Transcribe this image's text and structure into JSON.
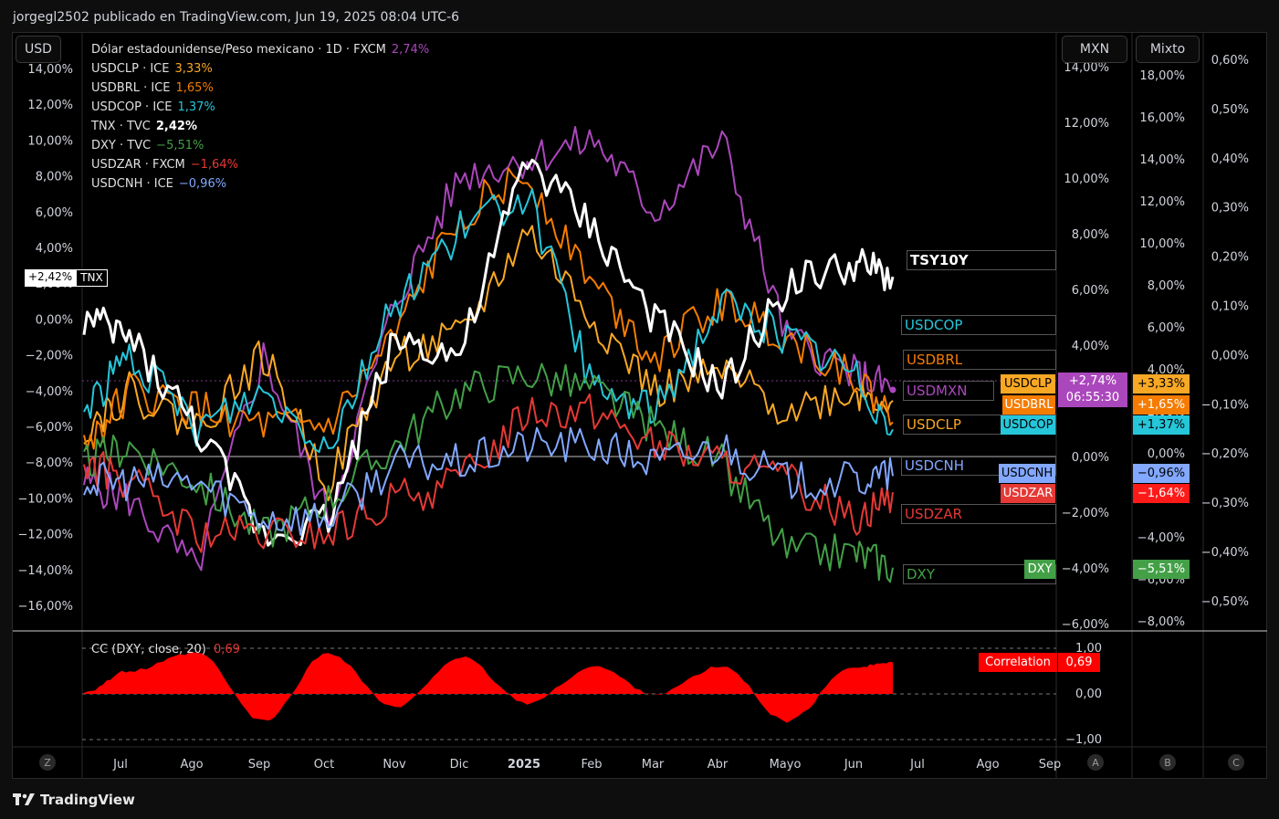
{
  "header": {
    "publisher_line": "jorgegl2502 publicado en TradingView.com, Jun 19, 2025 08:04 UTC-6"
  },
  "footer": {
    "brand": "TradingView"
  },
  "scale_buttons": {
    "left": "USD",
    "right1": "MXN",
    "right2": "Mixto"
  },
  "bottom_circles": [
    "Z",
    "A",
    "B",
    "C"
  ],
  "legend": [
    {
      "name": "Dólar estadounidense/Peso mexicano · 1D · FXCM",
      "value": "2,74%",
      "color": "#ab47bc"
    },
    {
      "name": "USDCLP · ICE",
      "value": "3,33%",
      "color": "#f9a825"
    },
    {
      "name": "USDBRL · ICE",
      "value": "1,65%",
      "color": "#f57c00"
    },
    {
      "name": "USDCOP · ICE",
      "value": "1,37%",
      "color": "#26c6da"
    },
    {
      "name": "TNX · TVC",
      "value": "2,42%",
      "color": "#ffffff"
    },
    {
      "name": "DXY · TVC",
      "value": "−5,51%",
      "color": "#43a047"
    },
    {
      "name": "USDZAR · FXCM",
      "value": "−1,64%",
      "color": "#e53935"
    },
    {
      "name": "USDCNH · ICE",
      "value": "−0,96%",
      "color": "#82a8ff"
    }
  ],
  "colors": {
    "mxn": "#ab47bc",
    "clp": "#f9a825",
    "brl": "#f57c00",
    "cop": "#26c6da",
    "tnx": "#ffffff",
    "dxy": "#43a047",
    "zar": "#e53935",
    "cnh": "#82a8ff",
    "corr": "#ff0000"
  },
  "axes": {
    "left_ticks": [
      "14,00%",
      "12,00%",
      "10,00%",
      "8,00%",
      "6,00%",
      "4,00%",
      "2,00%",
      "0,00%",
      "−2,00%",
      "−4,00%",
      "−6,00%",
      "−8,00%",
      "−10,00%",
      "−12,00%",
      "−14,00%",
      "−16,00%"
    ],
    "mxn_ticks": [
      "14,00%",
      "12,00%",
      "10,00%",
      "8,00%",
      "6,00%",
      "4,00%",
      "2,00%",
      "0,00%",
      "−2,00%",
      "−4,00%",
      "−6,00%"
    ],
    "mixto_ticks": [
      "18,00%",
      "16,00%",
      "14,00%",
      "12,00%",
      "10,00%",
      "8,00%",
      "6,00%",
      "4,00%",
      "2,00%",
      "0,00%",
      "−2,00%",
      "−4,00%",
      "−6,00%",
      "−8,00%"
    ],
    "far_right_ticks": [
      "0,60%",
      "0,50%",
      "0,40%",
      "0,30%",
      "0,20%",
      "0,10%",
      "0,00%",
      "−0,10%",
      "−0,20%",
      "−0,30%",
      "−0,40%",
      "−0,50%"
    ],
    "x_ticks": [
      "Jul",
      "Ago",
      "Sep",
      "Oct",
      "Nov",
      "Dic",
      "2025",
      "Feb",
      "Mar",
      "Abr",
      "Mayo",
      "Jun",
      "Jul",
      "Ago",
      "Sep"
    ],
    "corr_ticks": [
      "1,00",
      "0,00",
      "−1,00"
    ]
  },
  "tags": {
    "tnx_left_value": "+2,42%",
    "tnx_left_name": "TNX",
    "names": [
      "TSY10Y",
      "USDCOP",
      "USDBRL",
      "USDMXN",
      "USDCLP",
      "USDCNH",
      "USDZAR",
      "DXY"
    ],
    "box_clp": "USDCLP",
    "box_brl": "USDBRL",
    "box_cop": "USDCOP",
    "box_cnh": "USDCNH",
    "box_zar": "USDZAR",
    "box_dxy": "DXY",
    "mxn_value": "+2,74%",
    "mxn_time": "06:55:30",
    "vals": {
      "clp": "+3,33%",
      "brl": "+1,65%",
      "cop": "+1,37%",
      "cnh": "−0,96%",
      "zar": "−1,64%",
      "dxy": "−5,51%"
    },
    "corr_label": "Correlation",
    "corr_value": "0,69"
  },
  "indicator": {
    "title": "CC (DXY, close, 20)",
    "value": "0,69"
  },
  "chart_data": {
    "type": "line",
    "x": [
      "2024-06-10",
      "2024-07-01",
      "2024-08-01",
      "2024-09-01",
      "2024-10-01",
      "2024-11-01",
      "2024-12-01",
      "2025-01-01",
      "2025-02-01",
      "2025-03-01",
      "2025-04-01",
      "2025-05-01",
      "2025-06-01",
      "2025-06-19"
    ],
    "series": [
      {
        "name": "Dólar estadounidense/Peso mexicano",
        "color": "#ab47bc",
        "values": [
          -9,
          -10,
          -14,
          -2,
          -11,
          1,
          8,
          9,
          10,
          6,
          10,
          -1,
          -3,
          -3.9
        ]
      },
      {
        "name": "USDCLP",
        "color": "#f9a825",
        "values": [
          -6,
          -4,
          -6,
          -2,
          -9,
          -2,
          -1,
          5,
          0,
          -4,
          -3,
          -5,
          -4,
          -4.5
        ]
      },
      {
        "name": "USDBRL",
        "color": "#f57c00",
        "values": [
          -7,
          -4,
          -5,
          -6,
          -6,
          -1,
          6,
          8,
          2,
          -2,
          1,
          -1,
          -3,
          -5.7
        ]
      },
      {
        "name": "USDCOP",
        "color": "#26c6da",
        "values": [
          -5,
          -2,
          -6,
          -4,
          -7,
          1,
          5,
          7,
          -4,
          -5,
          1,
          -1,
          -3,
          -6.1
        ]
      },
      {
        "name": "TNX",
        "color": "#ffffff",
        "values": [
          0,
          -1,
          -6,
          -12,
          -11,
          -1,
          -2,
          9,
          5,
          0,
          -4,
          2,
          3,
          2.4
        ]
      },
      {
        "name": "DXY",
        "color": "#43a047",
        "values": [
          -8,
          -7,
          -9,
          -12,
          -10,
          -7,
          -4,
          -3,
          -4,
          -6,
          -8,
          -13,
          -13,
          -13.8
        ]
      },
      {
        "name": "USDZAR",
        "color": "#e53935",
        "values": [
          -8,
          -9,
          -12,
          -12,
          -12,
          -10,
          -9,
          -5,
          -5,
          -7,
          -8,
          -9,
          -11,
          -9.6
        ]
      },
      {
        "name": "USDCNH",
        "color": "#82a8ff",
        "values": [
          -9,
          -9,
          -9,
          -11,
          -11,
          -8,
          -8,
          -7,
          -7,
          -8,
          -7,
          -9,
          -9,
          -8.7
        ]
      }
    ],
    "ylim": [
      -16,
      14
    ],
    "correlation": {
      "name": "CC (DXY, close, 20)",
      "values": [
        0.05,
        0.5,
        0.9,
        -0.6,
        0.9,
        -0.3,
        0.8,
        -0.2,
        0.6,
        0,
        0.6,
        -0.6,
        0.6,
        0.69
      ],
      "ylim": [
        -1,
        1
      ]
    }
  }
}
